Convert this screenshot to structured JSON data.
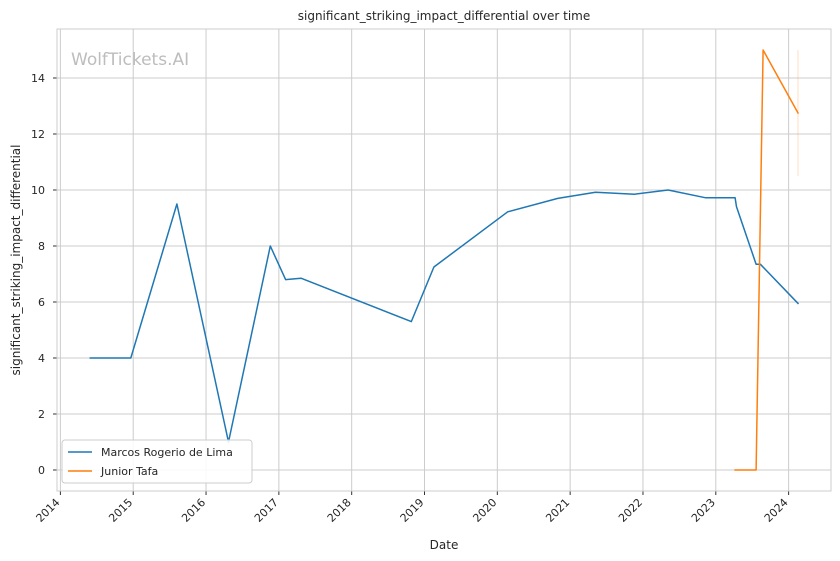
{
  "watermark": "WolfTickets.AI",
  "chart_data": {
    "type": "line",
    "title": "significant_striking_impact_differential over time",
    "xlabel": "Date",
    "ylabel": "significant_striking_impact_differential",
    "x_ticks": [
      "2014",
      "2015",
      "2016",
      "2017",
      "2018",
      "2019",
      "2020",
      "2021",
      "2022",
      "2023",
      "2024"
    ],
    "y_ticks": [
      "0",
      "2",
      "4",
      "6",
      "8",
      "10",
      "12",
      "14"
    ],
    "xlim": [
      "2013-12-15",
      "2024-08-01"
    ],
    "ylim": [
      -0.75,
      15.75
    ],
    "grid": true,
    "legend_position": "lower-left",
    "series": [
      {
        "name": "Marcos Rogerio de Lima",
        "color": "#1f77b4",
        "points": [
          {
            "x": "2014-05-31",
            "y": 4.0
          },
          {
            "x": "2014-12-20",
            "y": 4.0
          },
          {
            "x": "2015-08-08",
            "y": 9.5
          },
          {
            "x": "2016-04-23",
            "y": 1.0
          },
          {
            "x": "2016-11-19",
            "y": 8.0
          },
          {
            "x": "2017-02-04",
            "y": 6.8
          },
          {
            "x": "2017-04-22",
            "y": 6.85
          },
          {
            "x": "2018-10-27",
            "y": 5.3
          },
          {
            "x": "2019-02-17",
            "y": 7.25
          },
          {
            "x": "2020-02-22",
            "y": 9.22
          },
          {
            "x": "2020-10-31",
            "y": 9.7
          },
          {
            "x": "2021-05-08",
            "y": 9.92
          },
          {
            "x": "2021-11-20",
            "y": 9.85
          },
          {
            "x": "2022-05-07",
            "y": 10.0
          },
          {
            "x": "2022-11-12",
            "y": 9.72
          },
          {
            "x": "2023-04-08",
            "y": 9.72
          },
          {
            "x": "2023-04-15",
            "y": 9.4
          },
          {
            "x": "2023-07-22",
            "y": 7.35
          },
          {
            "x": "2023-08-12",
            "y": 7.35
          },
          {
            "x": "2024-02-17",
            "y": 5.95
          }
        ]
      },
      {
        "name": "Junior Tafa",
        "color": "#ff7f0e",
        "points": [
          {
            "x": "2023-04-08",
            "y": 0.0
          },
          {
            "x": "2023-07-22",
            "y": 0.0
          },
          {
            "x": "2023-08-26",
            "y": 15.0
          },
          {
            "x": "2024-02-17",
            "y": 12.75
          }
        ],
        "range_band": {
          "x": "2024-02-17",
          "y_low": 10.5,
          "y_high": 15.0
        }
      }
    ]
  }
}
